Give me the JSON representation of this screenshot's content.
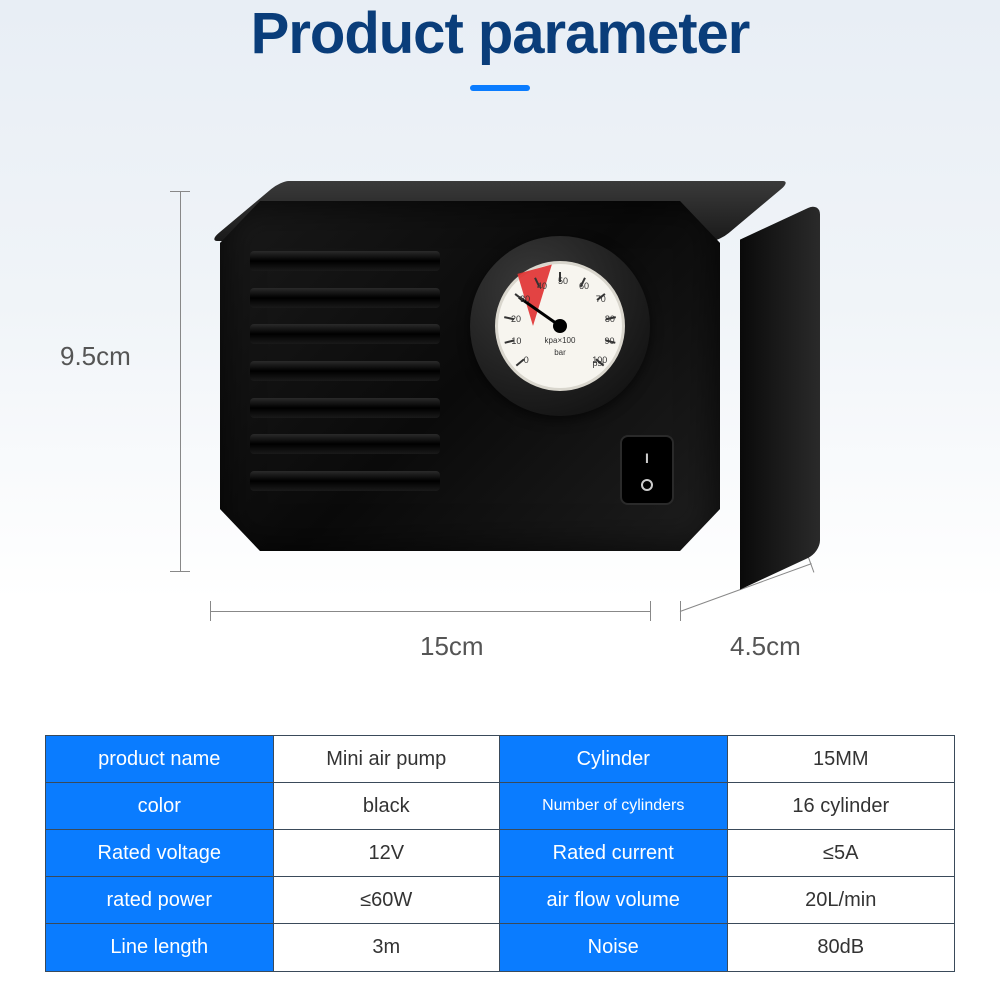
{
  "title": "Product parameter",
  "title_color": "#0a3d7a",
  "title_fontsize": 58,
  "underline_color": "#0a7cff",
  "dimensions": {
    "height": "9.5cm",
    "width": "15cm",
    "depth": "4.5cm"
  },
  "gauge": {
    "unit_top": "kpa×100",
    "unit_mid": "bar",
    "unit_psi": "psi",
    "scale_numbers": [
      "0",
      "10",
      "20",
      "30",
      "40",
      "50",
      "60",
      "70",
      "80",
      "90",
      "100"
    ],
    "needle_color": "#000000",
    "warn_color": "#e03030",
    "face_color": "#f7f5ef"
  },
  "switch": {
    "on": "I",
    "off": "O"
  },
  "table": {
    "header_bg": "#0a7cff",
    "header_fg": "#ffffff",
    "value_fg": "#333333",
    "border": "#3a4a5a",
    "rows": [
      {
        "l1": "product name",
        "v1": "Mini air pump",
        "l2": "Cylinder",
        "v2": "15MM"
      },
      {
        "l1": "color",
        "v1": "black",
        "l2": "Number of cylinders",
        "v2": "16 cylinder",
        "l2_small": true
      },
      {
        "l1": "Rated voltage",
        "v1": "12V",
        "l2": "Rated current",
        "v2": "≤5A"
      },
      {
        "l1": "rated power",
        "v1": "≤60W",
        "l2": "air flow volume",
        "v2": "20L/min"
      },
      {
        "l1": "Line length",
        "v1": "3m",
        "l2": "Noise",
        "v2": "80dB"
      }
    ]
  },
  "colors": {
    "background_top": "#e8eef5",
    "background_bottom": "#ffffff",
    "device_body": "#0a0a0a"
  }
}
